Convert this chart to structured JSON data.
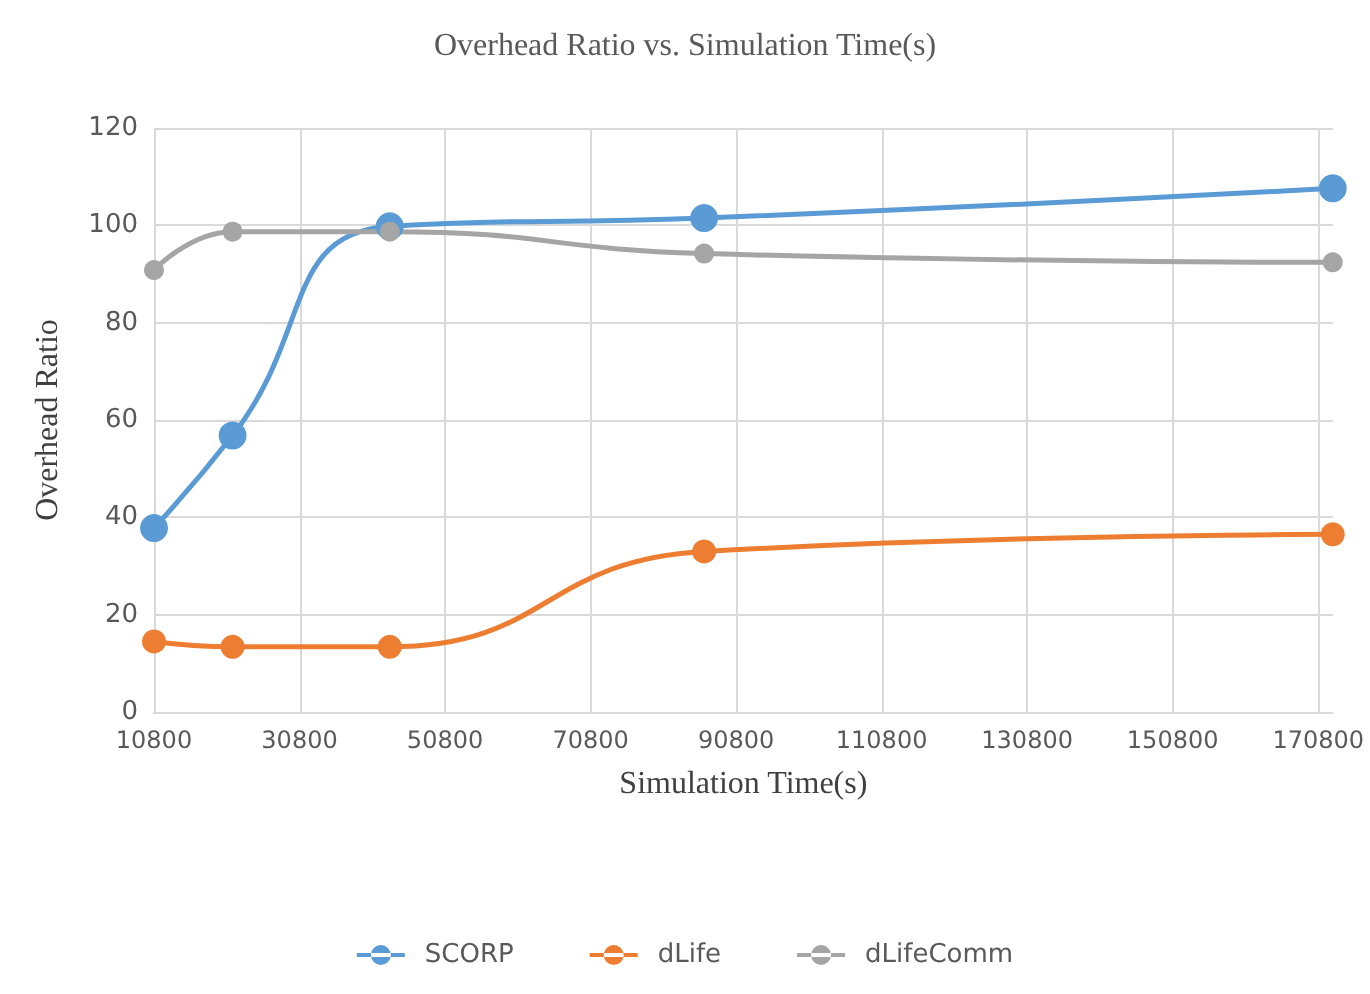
{
  "chart_data": {
    "type": "line",
    "title": "Overhead Ratio vs. Simulation Time(s)",
    "xlabel": "Simulation Time(s)",
    "ylabel": "Overhead Ratio",
    "x": [
      10800,
      21600,
      43200,
      86400,
      172800
    ],
    "series": [
      {
        "name": "SCORP",
        "color": "#5b9bd5",
        "values": [
          37.8,
          56.8,
          99.8,
          101.5,
          107.6
        ]
      },
      {
        "name": "dLife",
        "color": "#ed7d31",
        "values": [
          14.5,
          13.4,
          13.4,
          33,
          36.5
        ]
      },
      {
        "name": "dLifeComm",
        "color": "#a5a5a5",
        "values": [
          90.8,
          98.7,
          98.7,
          94.2,
          92.4
        ]
      }
    ],
    "xlim": [
      10800,
      172800
    ],
    "xticks": [
      10800,
      30800,
      50800,
      70800,
      90800,
      110800,
      130800,
      150800,
      170800
    ],
    "ylim": [
      0,
      120
    ],
    "yticks": [
      0,
      20,
      40,
      60,
      80,
      100,
      120
    ],
    "grid": true,
    "legend": "bottom",
    "marker": "circle",
    "line_style": "solid"
  }
}
